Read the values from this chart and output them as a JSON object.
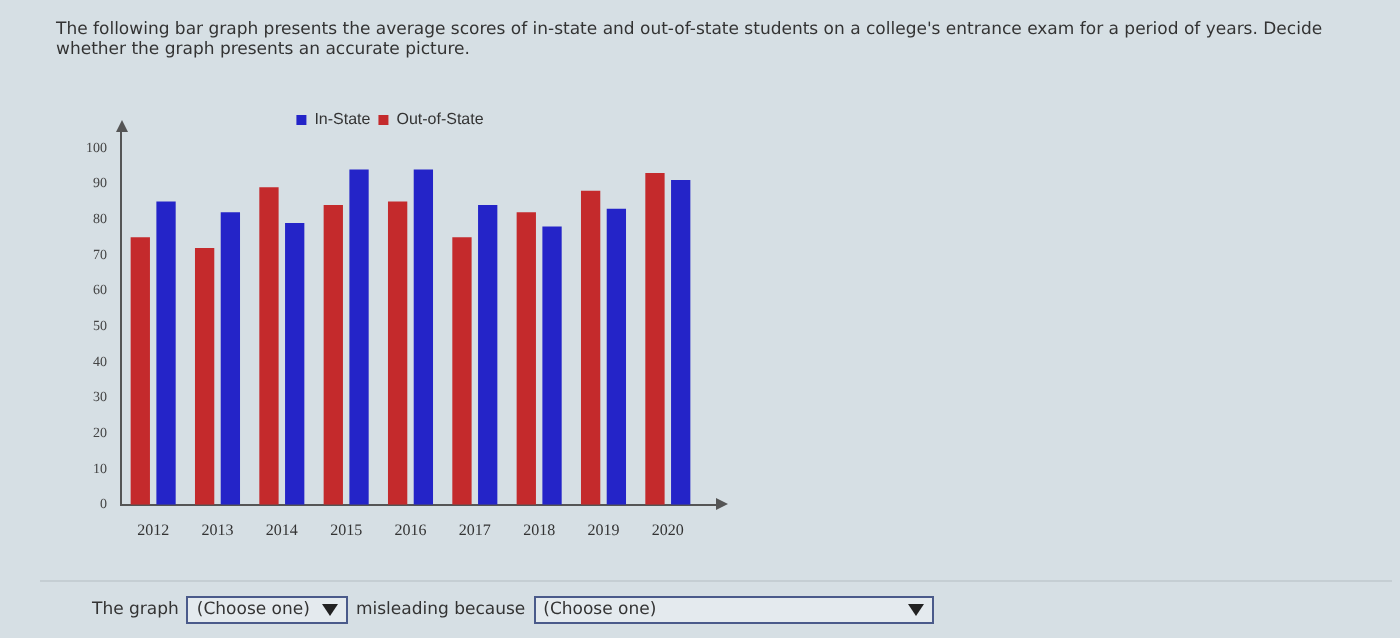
{
  "chart_data": {
    "type": "bar",
    "title": "The following bar graph presents the average scores of in-state and out-of-state students on a college's entrance exam for a period of years. Decide whether the graph presents an accurate picture.",
    "categories": [
      "2012",
      "2013",
      "2014",
      "2015",
      "2016",
      "2017",
      "2018",
      "2019",
      "2020"
    ],
    "series": [
      {
        "name": "Out-of-State",
        "color": "#c42a2c",
        "values": [
          75,
          72,
          89,
          84,
          85,
          75,
          82,
          88,
          93
        ]
      },
      {
        "name": "In-State",
        "color": "#2424c8",
        "values": [
          85,
          82,
          79,
          94,
          94,
          84,
          78,
          83,
          91
        ]
      }
    ],
    "ylim": [
      0,
      100
    ],
    "yticks": [
      0,
      10,
      20,
      30,
      40,
      50,
      60,
      70,
      80,
      90,
      100
    ],
    "grid": false,
    "legend": "top",
    "annotations": [
      "The graph",
      "(Choose one)",
      "misleading because",
      "(Choose one)"
    ]
  }
}
